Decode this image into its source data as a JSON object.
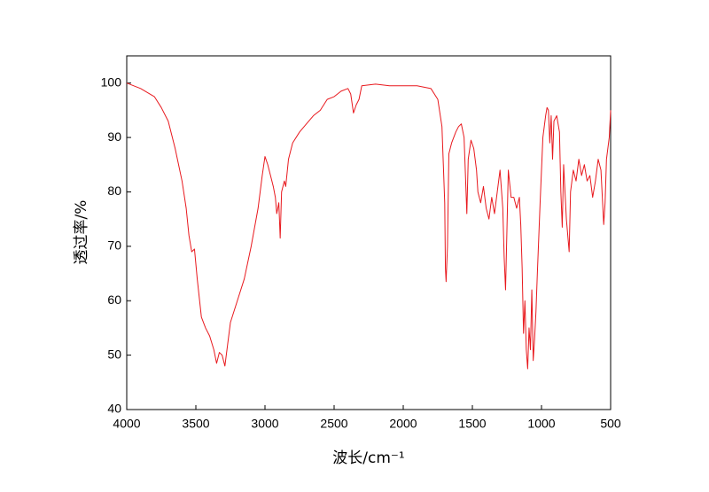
{
  "chart_data": {
    "type": "line",
    "x_label": "波长/cm⁻¹",
    "y_label": "透过率/%",
    "color": "#e8191e",
    "xlim": [
      4000,
      500
    ],
    "xticks": [
      4000,
      3500,
      3000,
      2500,
      2000,
      1500,
      1000,
      500
    ],
    "ylim": [
      40,
      105
    ],
    "yticks": [
      40,
      50,
      60,
      70,
      80,
      90,
      100
    ],
    "x": [
      4000,
      3900,
      3800,
      3750,
      3700,
      3650,
      3600,
      3570,
      3550,
      3530,
      3510,
      3490,
      3460,
      3430,
      3400,
      3370,
      3350,
      3330,
      3310,
      3290,
      3270,
      3250,
      3200,
      3150,
      3100,
      3050,
      3020,
      3000,
      2980,
      2960,
      2940,
      2925,
      2915,
      2900,
      2890,
      2880,
      2860,
      2850,
      2830,
      2800,
      2750,
      2700,
      2650,
      2600,
      2550,
      2500,
      2450,
      2400,
      2380,
      2360,
      2340,
      2320,
      2300,
      2200,
      2100,
      2000,
      1900,
      1800,
      1750,
      1720,
      1710,
      1700,
      1695,
      1690,
      1680,
      1670,
      1650,
      1620,
      1600,
      1580,
      1560,
      1540,
      1530,
      1510,
      1490,
      1470,
      1460,
      1440,
      1420,
      1400,
      1380,
      1360,
      1340,
      1320,
      1300,
      1280,
      1270,
      1260,
      1240,
      1220,
      1200,
      1180,
      1160,
      1150,
      1140,
      1130,
      1120,
      1110,
      1100,
      1090,
      1080,
      1070,
      1060,
      1050,
      1040,
      1030,
      1010,
      990,
      970,
      960,
      950,
      940,
      930,
      920,
      910,
      890,
      870,
      860,
      850,
      840,
      820,
      800,
      790,
      770,
      750,
      730,
      710,
      690,
      670,
      650,
      630,
      610,
      590,
      570,
      550,
      540,
      530,
      510,
      500
    ],
    "values": [
      100,
      99,
      97.5,
      95.5,
      93,
      88,
      82,
      77,
      72,
      69,
      69.5,
      64,
      57,
      55,
      53.5,
      51,
      48.5,
      50.5,
      50,
      48,
      52,
      56,
      60,
      64,
      70,
      77,
      83,
      86.5,
      85,
      83,
      81,
      79,
      76,
      78,
      71.5,
      80,
      82,
      81,
      86,
      89,
      91,
      92.5,
      94,
      95,
      97,
      97.5,
      98.5,
      99,
      98,
      94.5,
      96,
      97,
      99.5,
      99.8,
      99.5,
      99.5,
      99.5,
      99,
      97,
      92,
      85,
      78,
      66,
      63.5,
      70,
      87,
      89,
      91,
      92,
      92.5,
      90,
      76,
      86,
      89.5,
      88,
      84,
      80,
      78,
      81,
      77,
      75,
      79,
      76,
      80,
      84,
      77,
      68,
      62,
      84,
      79,
      79,
      77,
      79,
      74,
      66,
      54,
      60,
      51,
      47.5,
      55,
      51,
      62,
      49,
      53,
      58,
      65,
      78,
      90,
      94,
      95.5,
      95,
      89,
      94,
      86,
      93,
      94,
      91,
      80,
      73.5,
      85,
      75,
      69,
      80,
      84,
      82,
      86,
      83,
      85,
      82,
      83,
      79,
      82,
      86,
      84,
      74,
      78,
      86,
      90,
      95
    ]
  }
}
